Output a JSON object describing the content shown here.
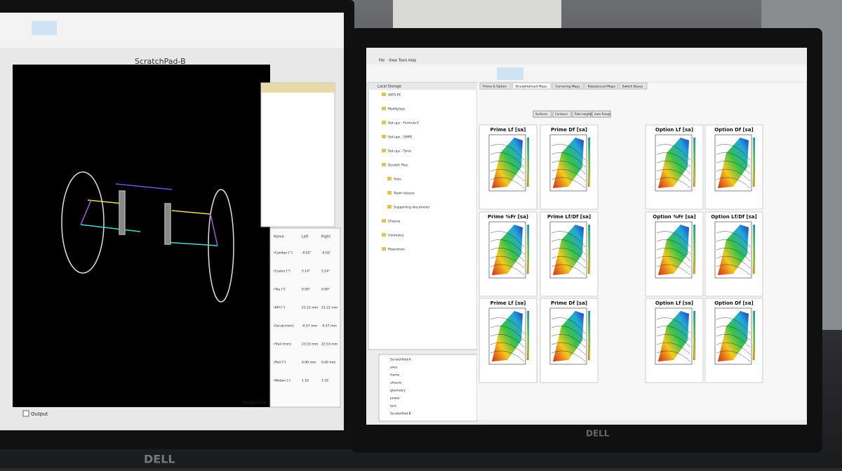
{
  "left_monitor": {
    "window_title": "ScratchPad-B",
    "brand": "DELL",
    "output_label": "Output",
    "perspective_label": "Perspective",
    "table": {
      "header": [
        "Name",
        "Left",
        "Right"
      ],
      "rows": [
        [
          "rCamber [°]",
          "-0.02°",
          "-0.02°"
        ],
        [
          "rCaster [°]",
          "5.14°",
          "5.14°"
        ],
        [
          "rToe [°]",
          "0.00°",
          "0.00°"
        ],
        [
          "rKPI [°]",
          "21.22 mm",
          "21.22 mm"
        ],
        [
          "rScrub [mm]",
          "-0.57 mm",
          "-0.57 mm"
        ],
        [
          "rTrail [mm]",
          "23.53 mm",
          "23.53 mm"
        ],
        [
          "rRoll [°]",
          "0.00 mm",
          "0.00 mm"
        ],
        [
          "rMotion [-]",
          "1.16",
          "1.16"
        ]
      ]
    }
  },
  "right_monitor": {
    "brand": "DELL",
    "menu": [
      "File",
      "View",
      "Tools",
      "Help"
    ],
    "tabs": [
      "Prime & Option",
      "Straightahead Maps",
      "Cornering Maps",
      "Rebalanced Maps",
      "Switch Bases"
    ],
    "tree_root": "Local Storage",
    "tree": [
      "AKTS-RC",
      "Modify/eps",
      "Set-ups - Formula E",
      "Set-ups - GMPE",
      "Set-ups - Tyres",
      "Scratch Files",
      "Axes",
      "Team release",
      "Supporting documents",
      "Chassis",
      "Geometry",
      "Powertrain"
    ],
    "buttons": [
      "Surfaces",
      "Contours",
      "Ride heights",
      "Auto Range"
    ],
    "plots": [
      "Prime Lf [sa]",
      "Prime Df [sa]",
      "Option Lf [sa]",
      "Option Df [sa]",
      "Prime %Fr [sa]",
      "Prime Lf/Df [sa]",
      "Option %Fr [sa]",
      "Option Lf/Df [sa]",
      "Prime Lf [sa]",
      "Prime Df [sa]",
      "Option Lf [sa]",
      "Option Df [sa]"
    ],
    "bottom_tree": [
      "ScratchPad-A",
      "axes",
      "frame",
      "chassis",
      "geometry",
      "power",
      "tyre",
      "ScratchPad-B"
    ]
  }
}
